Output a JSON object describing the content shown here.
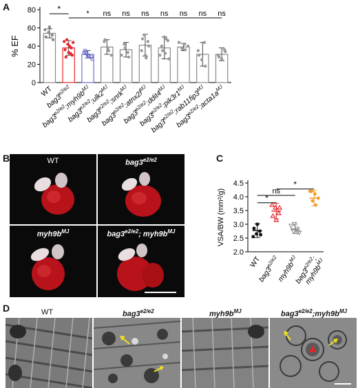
{
  "panel_a": {
    "letter": "A",
    "ylabel": "% EF",
    "yticks": [
      "0",
      "20",
      "40",
      "60",
      "80"
    ],
    "groups": [
      {
        "label": "WT",
        "sup": "",
        "mean": 54,
        "sd": 5,
        "color": "#888888",
        "points": [
          58,
          55,
          52,
          50,
          61,
          47
        ]
      },
      {
        "label": "bag3",
        "sup": "e2/e2",
        "mean": 38,
        "sd": 8,
        "color": "#e8262b",
        "points": [
          45,
          42,
          38,
          36,
          33,
          30,
          28,
          40,
          44,
          47,
          32
        ]
      },
      {
        "label": "bag3",
        "sup": "e2/e2",
        "tail": ";myh9b",
        "tailsup": "MJ",
        "mean": 31,
        "sd": 4,
        "color": "#6b6bd0",
        "points": [
          33,
          30,
          28,
          35,
          29,
          26,
          32
        ]
      },
      {
        "label": "bag3",
        "sup": "e2/e2",
        "tail": ";ulk2",
        "tailsup": "MJ",
        "mean": 39,
        "sd": 8,
        "color": "#999999",
        "points": [
          45,
          38,
          30,
          47,
          35
        ]
      },
      {
        "label": "bag3",
        "sup": "e2/e2",
        "tail": ";snrk",
        "tailsup": "MJ",
        "mean": 36,
        "sd": 8,
        "color": "#999999",
        "points": [
          42,
          33,
          30,
          38,
          28
        ]
      },
      {
        "label": "bag3",
        "sup": "e2/e2",
        "tail": ";atnx2l",
        "tailsup": "MJ",
        "mean": 41,
        "sd": 12,
        "color": "#999999",
        "points": [
          52,
          45,
          35,
          30,
          40,
          48,
          27
        ]
      },
      {
        "label": "bag3",
        "sup": "e2/e2",
        "tail": ";ddit4",
        "tailsup": "MJ",
        "mean": 38,
        "sd": 12,
        "color": "#999999",
        "points": [
          50,
          46,
          40,
          32,
          26,
          35,
          48,
          30
        ]
      },
      {
        "label": "bag3",
        "sup": "e2/e2",
        "tail": ";pik3r1",
        "tailsup": "MJ",
        "mean": 39,
        "sd": 4,
        "color": "#999999",
        "points": [
          42,
          40,
          38,
          36,
          44,
          37
        ]
      },
      {
        "label": "bag3",
        "sup": "e2/e2",
        "tail": ";rab11fip3",
        "tailsup": "MJ",
        "mean": 31,
        "sd": 13,
        "color": "#999999",
        "points": [
          44,
          35,
          25,
          18,
          30
        ]
      },
      {
        "label": "bag3",
        "sup": "e2/e2",
        "tail": ";acta1a",
        "tailsup": "MJ",
        "mean": 31,
        "sd": 7,
        "color": "#999999",
        "points": [
          36,
          30,
          26,
          34,
          28
        ]
      }
    ],
    "sig": {
      "wt_vs_bag3": "*",
      "bag3_vs_myh9b": "*",
      "ns": "ns"
    }
  },
  "panel_b": {
    "letter": "B",
    "captions": {
      "wt": "WT",
      "bag3": "bag3",
      "bag3_sup": "e2/e2",
      "myh9b": "myh9b",
      "myh9b_sup": "MJ",
      "double": "bag3",
      "double_sup": "e2/e2",
      "double_mid": "; myh9b",
      "double_sup2": "MJ"
    }
  },
  "panel_c": {
    "letter": "C",
    "ylabel": "VSA/BW (mm²/g)",
    "yticks": [
      "2.0",
      "2.5",
      "3.0",
      "3.5",
      "4.0",
      "4.5"
    ],
    "groups": [
      {
        "label": "WT",
        "sup": "",
        "mean": 2.77,
        "sd": 0.25,
        "color": "#111111",
        "points": [
          2.55,
          2.65,
          2.75,
          2.85,
          3.0,
          2.62
        ]
      },
      {
        "label": "bag3",
        "sup": "e2/e2",
        "mean": 3.48,
        "sd": 0.28,
        "color": "#e8262b",
        "points": [
          3.7,
          3.6,
          3.4,
          3.3,
          3.15,
          3.6
        ]
      },
      {
        "label": "myh9b",
        "sup": "MJ",
        "mean": 2.83,
        "sd": 0.17,
        "color": "#888888",
        "points": [
          2.7,
          2.75,
          2.85,
          2.95,
          3.02,
          2.72
        ]
      },
      {
        "label": "bag3",
        "sup": "e2/e2",
        "tail": ";",
        "line2": "myh9b",
        "line2sup": "MJ",
        "mean": 3.95,
        "sd": 0.28,
        "color": "#f39a2b",
        "points": [
          4.2,
          4.1,
          3.95,
          3.85,
          3.7,
          4.2
        ]
      }
    ],
    "sig": {
      "top": "*",
      "ns": "ns",
      "low": "*"
    }
  },
  "panel_d": {
    "letter": "D",
    "captions": {
      "wt": "WT",
      "bag3": "bag3",
      "bag3_sup": "e2/e2",
      "myh9b": "myh9b",
      "myh9b_sup": "MJ",
      "double": "bag3",
      "double_sup": "e2/e2",
      "double_mid": ";myh9b",
      "double_sup2": "MJ"
    }
  }
}
